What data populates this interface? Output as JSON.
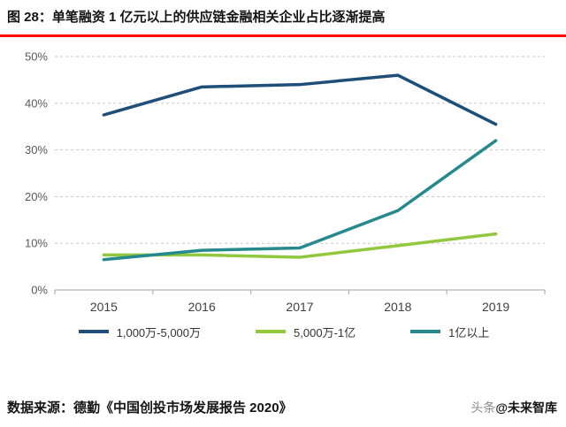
{
  "header": {
    "title": "图 28：单笔融资 1 亿元以上的供应链金融相关企业占比逐渐提高",
    "rule_color": "#ff0000"
  },
  "chart_data": {
    "type": "line",
    "title": "",
    "categories": [
      "2015",
      "2016",
      "2017",
      "2018",
      "2019"
    ],
    "series": [
      {
        "name": "1,000万-5,000万",
        "color": "#1f4e79",
        "values": [
          37.5,
          43.5,
          44,
          46,
          35.5
        ]
      },
      {
        "name": "5,000万-1亿",
        "color": "#92c83d",
        "values": [
          7.5,
          7.5,
          7,
          9.5,
          12
        ]
      },
      {
        "name": "1亿以上",
        "color": "#26898e",
        "values": [
          6.5,
          8.5,
          9,
          17,
          32
        ]
      }
    ],
    "ylim": [
      0,
      50
    ],
    "ytick_labels": [
      "0%",
      "10%",
      "20%",
      "30%",
      "40%",
      "50%"
    ],
    "grid": "horizontal-dashed",
    "legend_position": "bottom",
    "grid_color": "#c9c9c9",
    "axis_color": "#a6a6a6"
  },
  "footer": {
    "source": "数据来源：德勤《中国创投市场发展报告 2020》",
    "watermark_prefix": "头条",
    "watermark_name": "@未来智库"
  }
}
